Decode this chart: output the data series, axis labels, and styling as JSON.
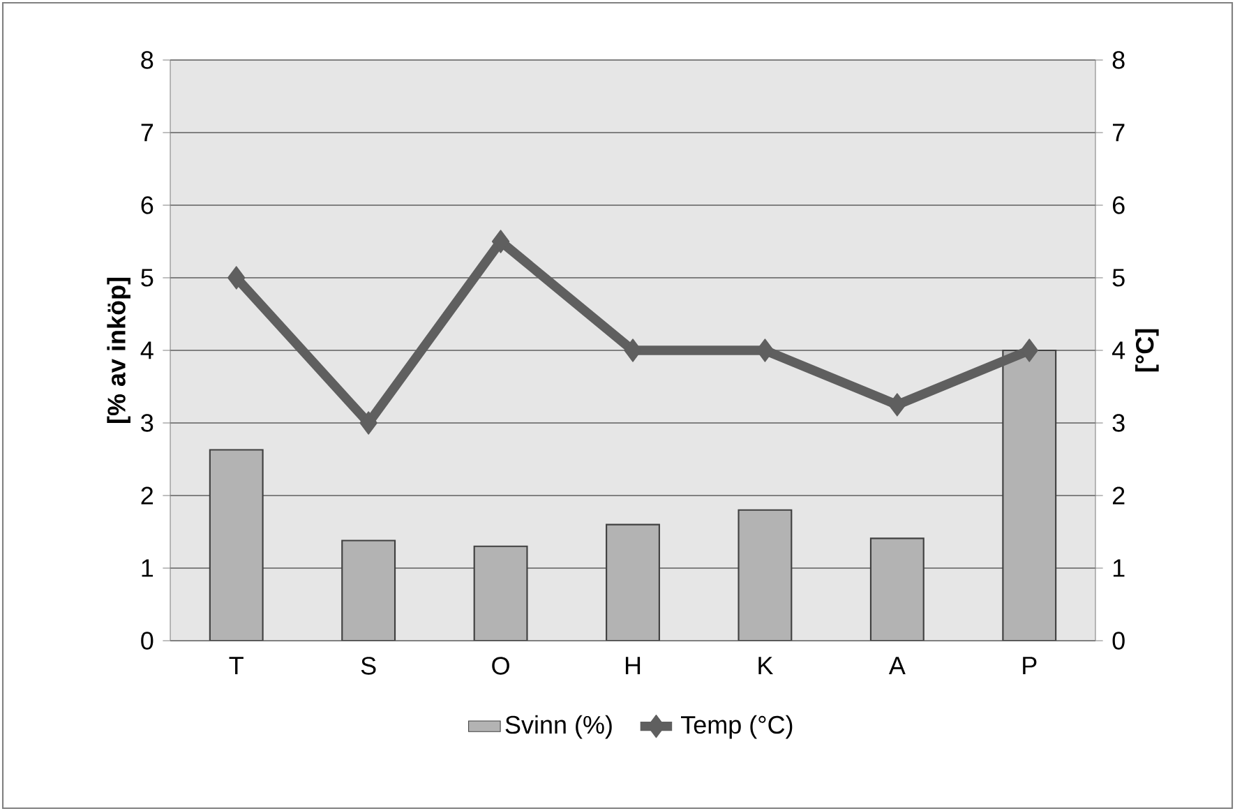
{
  "chart_data": {
    "type": "bar",
    "categories": [
      "T",
      "S",
      "O",
      "H",
      "K",
      "A",
      "P"
    ],
    "ylabel": "[% av inköp]",
    "y2label": "[°C]",
    "ylim": [
      0,
      8
    ],
    "yticks": [
      0,
      1,
      2,
      3,
      4,
      5,
      6,
      7,
      8
    ],
    "y2lim": [
      0,
      8
    ],
    "y2ticks": [
      0,
      1,
      2,
      3,
      4,
      5,
      6,
      7,
      8
    ],
    "grid": "y",
    "legend": "bottom",
    "marker": "diamond",
    "series": [
      {
        "name": "Svinn (%)",
        "color": "#b3b3b3",
        "values": [
          2.63,
          1.38,
          1.3,
          1.6,
          1.8,
          1.41,
          4.0
        ]
      },
      {
        "name": "Temp (°C)",
        "type": "line",
        "axis": "y2",
        "color": "#5f5f5f",
        "values": [
          5,
          3,
          5.5,
          4,
          4,
          3.25,
          4
        ]
      }
    ]
  }
}
